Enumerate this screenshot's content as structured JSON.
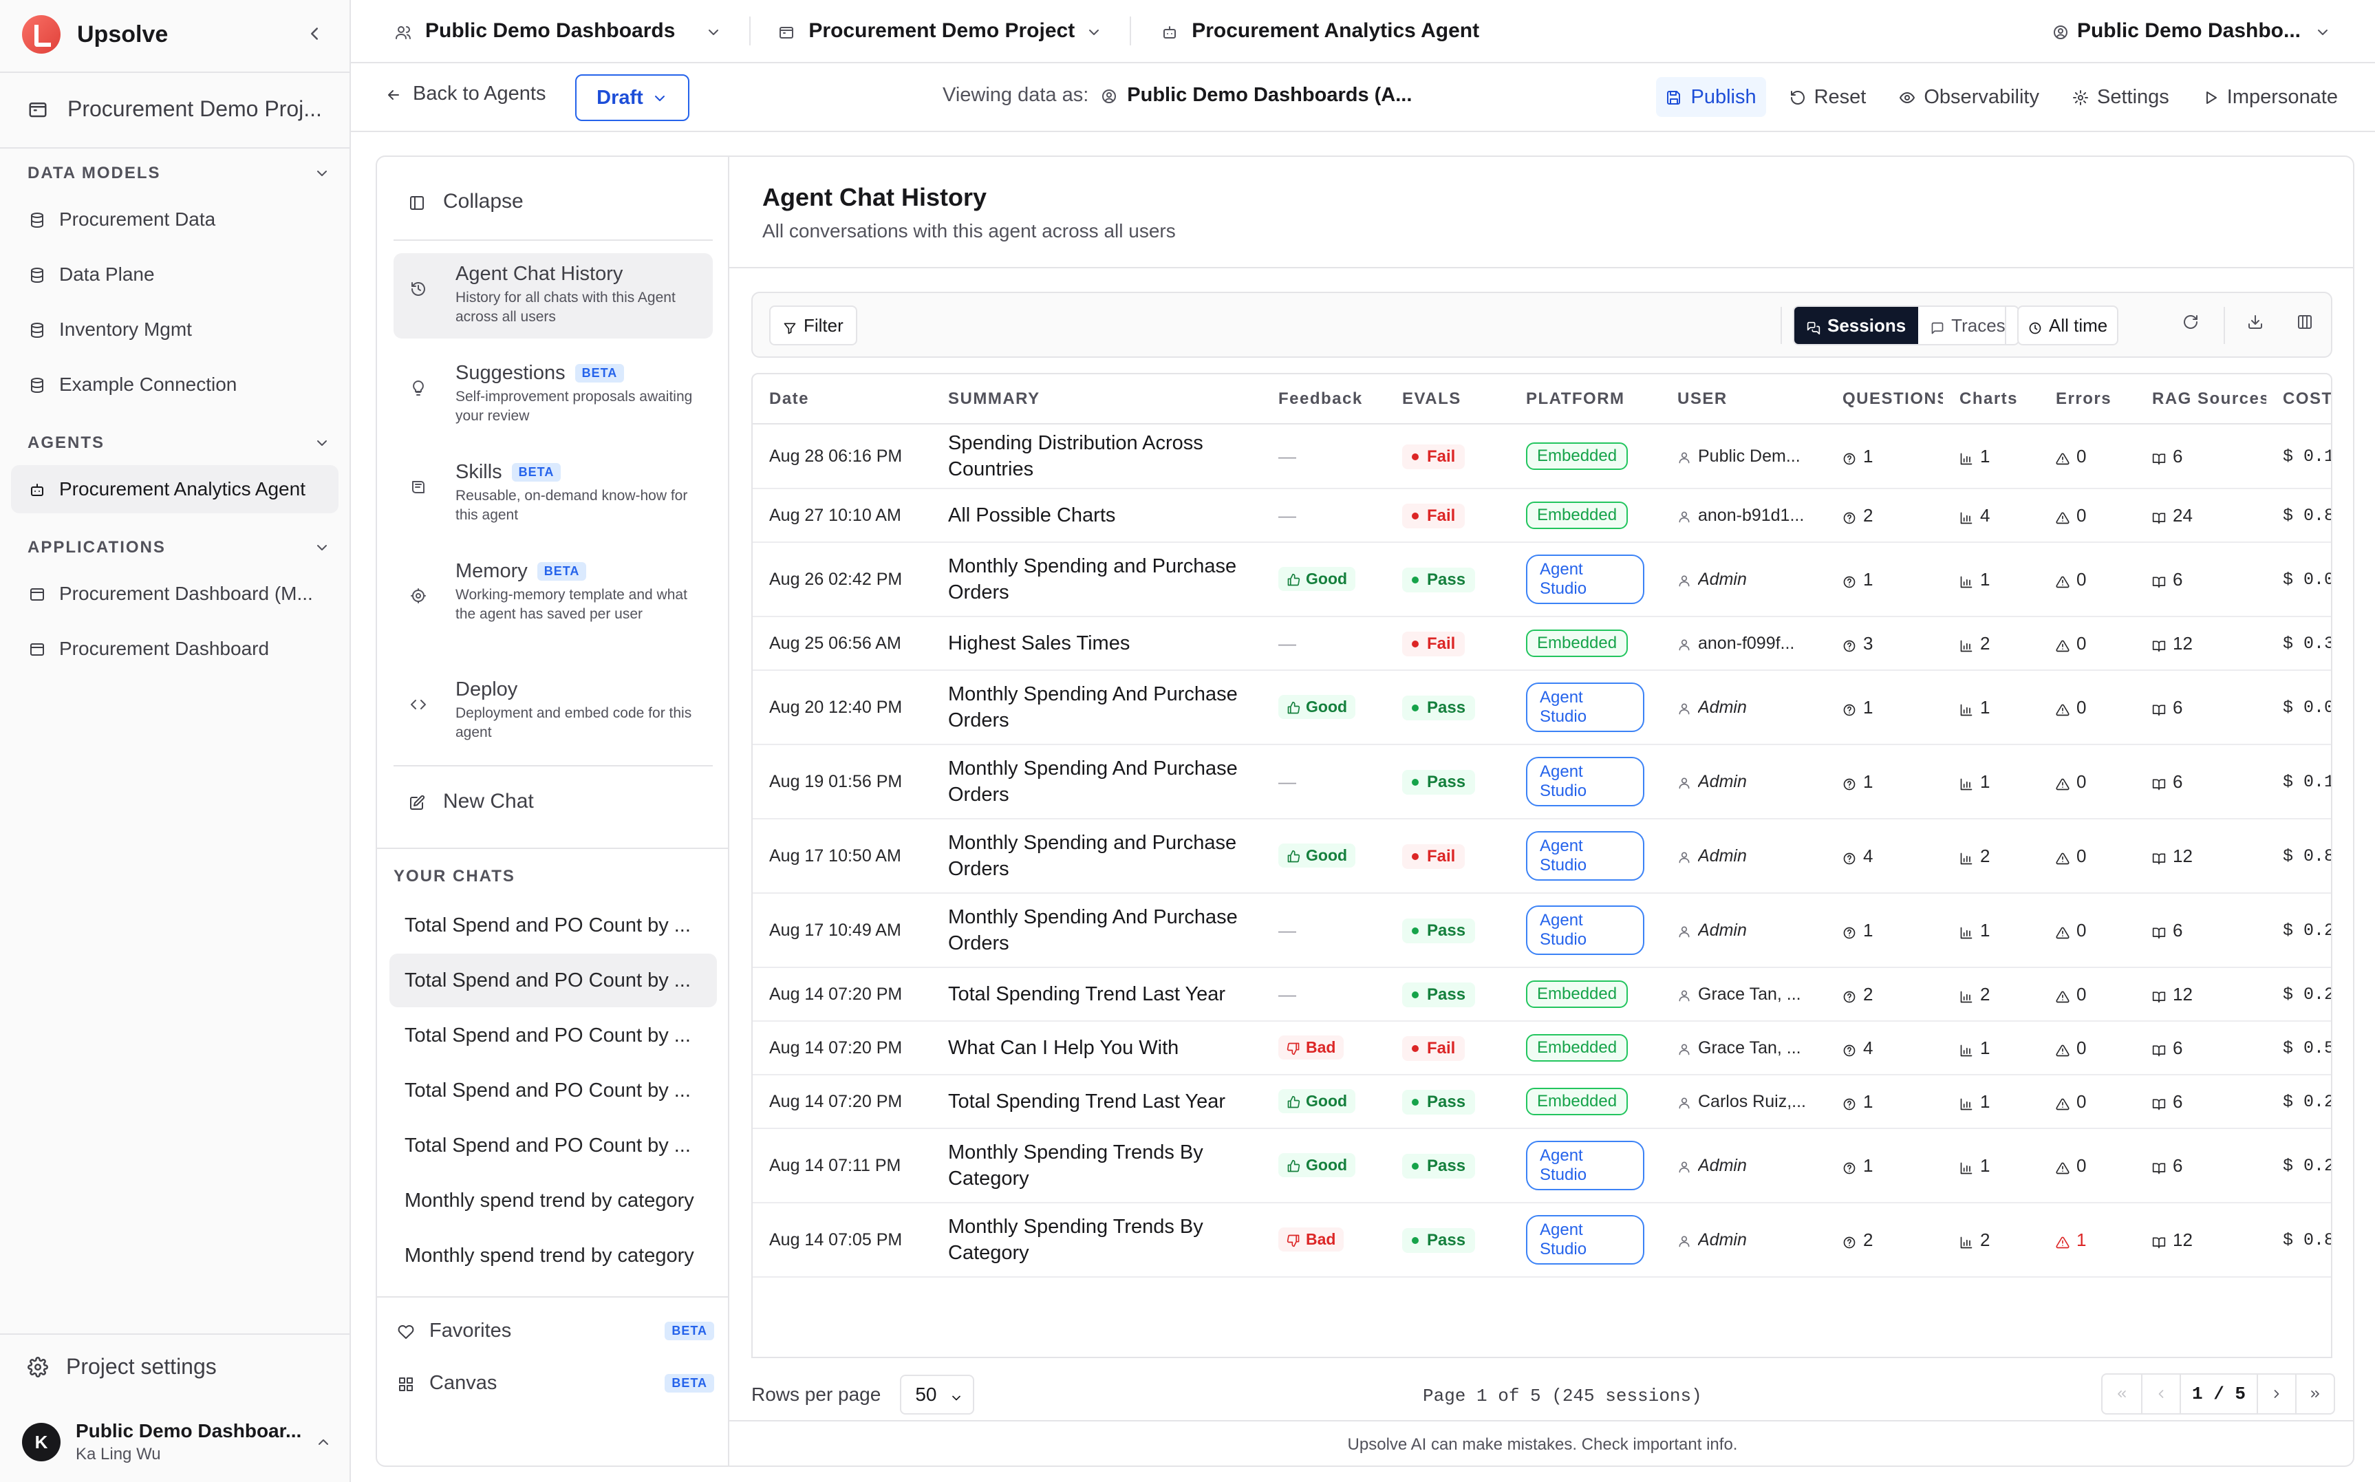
{
  "sidebar": {
    "brand": "Upsolve",
    "project": "Procurement Demo Proj...",
    "sections": {
      "data_models": "DATA MODELS",
      "agents": "AGENTS",
      "applications": "APPLICATIONS"
    },
    "data_models": [
      "Procurement Data",
      "Data Plane",
      "Inventory Mgmt",
      "Example Connection"
    ],
    "agents": [
      "Procurement Analytics Agent"
    ],
    "applications": [
      "Procurement Dashboard (M...",
      "Procurement Dashboard"
    ],
    "project_settings": "Project settings",
    "user": {
      "initial": "K",
      "org": "Public Demo Dashboar...",
      "name": "Ka Ling Wu"
    }
  },
  "topbar": {
    "org": "Public Demo Dashboards",
    "project": "Procurement Demo Project",
    "agent": "Procurement Analytics Agent",
    "account": "Public Demo Dashbo..."
  },
  "agentbar": {
    "back": "Back to Agents",
    "draft": "Draft",
    "viewing_label": "Viewing data as:",
    "viewing_value": "Public Demo Dashboards (A...",
    "actions": [
      "Publish",
      "Reset",
      "Observability",
      "Settings",
      "Impersonate"
    ]
  },
  "leftnav": {
    "collapse": "Collapse",
    "items": [
      {
        "title": "Agent Chat History",
        "desc": "History for all chats with this Agent across all users",
        "beta": ""
      },
      {
        "title": "Suggestions",
        "desc": "Self-improvement proposals awaiting your review",
        "beta": "BETA"
      },
      {
        "title": "Skills",
        "desc": "Reusable, on-demand know-how for this agent",
        "beta": "BETA"
      },
      {
        "title": "Memory",
        "desc": "Working-memory template and what the agent has saved per user",
        "beta": "BETA"
      },
      {
        "title": "Deploy",
        "desc": "Deployment and embed code for this agent",
        "beta": ""
      }
    ],
    "new_chat": "New Chat",
    "your_chats_label": "YOUR CHATS",
    "chats": [
      "Total Spend and PO Count by ...",
      "Total Spend and PO Count by ...",
      "Total Spend and PO Count by ...",
      "Total Spend and PO Count by ...",
      "Total Spend and PO Count by ...",
      "Monthly spend trend by category",
      "Monthly spend trend by category"
    ],
    "favorites": "Favorites",
    "canvas": "Canvas",
    "beta": "BETA"
  },
  "content": {
    "title": "Agent Chat History",
    "subtitle": "All conversations with this agent across all users",
    "filter": "Filter",
    "sessions": "Sessions",
    "traces": "Traces",
    "all_time": "All time",
    "columns": [
      "Date",
      "SUMMARY",
      "Feedback",
      "EVALS",
      "PLATFORM",
      "USER",
      "QUESTIONS",
      "Charts",
      "Errors",
      "RAG Sources",
      "COST"
    ],
    "rows": [
      {
        "date": "Aug 28 06:16 PM",
        "summary": "Spending Distribution Across Countries",
        "feedback": "",
        "eval": "Fail",
        "platform": "Embedded",
        "user": "Public Dem...",
        "user_italic": false,
        "questions": "1",
        "charts": "1",
        "errors": "0",
        "rag": "6",
        "cost": "$ 0.1"
      },
      {
        "date": "Aug 27 10:10 AM",
        "summary": "All Possible Charts",
        "feedback": "",
        "eval": "Fail",
        "platform": "Embedded",
        "user": "anon-b91d1...",
        "user_italic": false,
        "questions": "2",
        "charts": "4",
        "errors": "0",
        "rag": "24",
        "cost": "$ 0.8"
      },
      {
        "date": "Aug 26 02:42 PM",
        "summary": "Monthly Spending and Purchase Orders",
        "feedback": "Good",
        "eval": "Pass",
        "platform": "Agent Studio",
        "user": "Admin",
        "user_italic": true,
        "questions": "1",
        "charts": "1",
        "errors": "0",
        "rag": "6",
        "cost": "$ 0.0"
      },
      {
        "date": "Aug 25 06:56 AM",
        "summary": "Highest Sales Times",
        "feedback": "",
        "eval": "Fail",
        "platform": "Embedded",
        "user": "anon-f099f...",
        "user_italic": false,
        "questions": "3",
        "charts": "2",
        "errors": "0",
        "rag": "12",
        "cost": "$ 0.3"
      },
      {
        "date": "Aug 20 12:40 PM",
        "summary": "Monthly Spending And Purchase Orders",
        "feedback": "Good",
        "eval": "Pass",
        "platform": "Agent Studio",
        "user": "Admin",
        "user_italic": true,
        "questions": "1",
        "charts": "1",
        "errors": "0",
        "rag": "6",
        "cost": "$ 0.0"
      },
      {
        "date": "Aug 19 01:56 PM",
        "summary": "Monthly Spending And Purchase Orders",
        "feedback": "",
        "eval": "Pass",
        "platform": "Agent Studio",
        "user": "Admin",
        "user_italic": true,
        "questions": "1",
        "charts": "1",
        "errors": "0",
        "rag": "6",
        "cost": "$ 0.1"
      },
      {
        "date": "Aug 17 10:50 AM",
        "summary": "Monthly Spending and Purchase Orders",
        "feedback": "Good",
        "eval": "Fail",
        "platform": "Agent Studio",
        "user": "Admin",
        "user_italic": true,
        "questions": "4",
        "charts": "2",
        "errors": "0",
        "rag": "12",
        "cost": "$ 0.8"
      },
      {
        "date": "Aug 17 10:49 AM",
        "summary": "Monthly Spending And Purchase Orders",
        "feedback": "",
        "eval": "Pass",
        "platform": "Agent Studio",
        "user": "Admin",
        "user_italic": true,
        "questions": "1",
        "charts": "1",
        "errors": "0",
        "rag": "6",
        "cost": "$ 0.2"
      },
      {
        "date": "Aug 14 07:20 PM",
        "summary": "Total Spending Trend Last Year",
        "feedback": "",
        "eval": "Pass",
        "platform": "Embedded",
        "user": "Grace Tan, ...",
        "user_italic": false,
        "questions": "2",
        "charts": "2",
        "errors": "0",
        "rag": "12",
        "cost": "$ 0.2"
      },
      {
        "date": "Aug 14 07:20 PM",
        "summary": "What Can I Help You With",
        "feedback": "Bad",
        "eval": "Fail",
        "platform": "Embedded",
        "user": "Grace Tan, ...",
        "user_italic": false,
        "questions": "4",
        "charts": "1",
        "errors": "0",
        "rag": "6",
        "cost": "$ 0.5"
      },
      {
        "date": "Aug 14 07:20 PM",
        "summary": "Total Spending Trend Last Year",
        "feedback": "Good",
        "eval": "Pass",
        "platform": "Embedded",
        "user": "Carlos Ruiz,...",
        "user_italic": false,
        "questions": "1",
        "charts": "1",
        "errors": "0",
        "rag": "6",
        "cost": "$ 0.2"
      },
      {
        "date": "Aug 14 07:11 PM",
        "summary": "Monthly Spending Trends By Category",
        "feedback": "Good",
        "eval": "Pass",
        "platform": "Agent Studio",
        "user": "Admin",
        "user_italic": true,
        "questions": "1",
        "charts": "1",
        "errors": "0",
        "rag": "6",
        "cost": "$ 0.2"
      },
      {
        "date": "Aug 14 07:05 PM",
        "summary": "Monthly Spending Trends By Category",
        "feedback": "Bad",
        "eval": "Pass",
        "platform": "Agent Studio",
        "user": "Admin",
        "user_italic": true,
        "questions": "2",
        "charts": "2",
        "errors": "1",
        "rag": "12",
        "cost": "$ 0.8"
      }
    ],
    "rows_per_page_label": "Rows per page",
    "rows_per_page": "50",
    "page_info": "Page 1 of 5 (245 sessions)",
    "page": "1 / 5",
    "disclaimer": "Upsolve AI can make mistakes. Check important info."
  }
}
